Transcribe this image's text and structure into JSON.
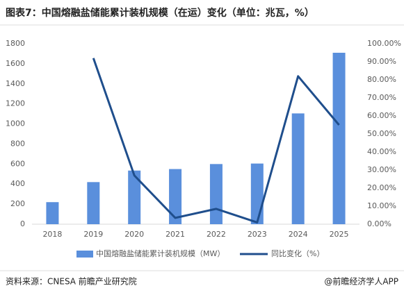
{
  "chart_data": {
    "type": "bar_line",
    "title": "图表7：中国熔融盐储能累计装机规模（在运）变化（单位：兆瓦，%）",
    "source": "资料来源：CNESA  前瞻产业研究院",
    "credit": "@前瞻经济学人APP",
    "categories": [
      "2018",
      "2019",
      "2020",
      "2021",
      "2022",
      "2023",
      "2024",
      "2025"
    ],
    "series": [
      {
        "name": "中国熔融盐储能累计装机规模（MW）",
        "type": "bar",
        "color": "#5a8fdc",
        "values": [
          220,
          420,
          535,
          550,
          600,
          605,
          1105,
          1710
        ]
      },
      {
        "name": "同比变化（%）",
        "type": "line",
        "axis": "y2",
        "color": "#1f4e8c",
        "values": [
          null,
          92,
          27,
          3.5,
          8.5,
          1,
          82,
          55
        ]
      }
    ],
    "ylim": [
      0,
      1800
    ],
    "yticks": [
      0,
      200,
      400,
      600,
      800,
      1000,
      1200,
      1400,
      1600,
      1800
    ],
    "y2lim": [
      0,
      100
    ],
    "y2ticks": [
      {
        "value": 0,
        "label": "0.00%"
      },
      {
        "value": 10,
        "label": "10.00%"
      },
      {
        "value": 20,
        "label": "20.00%"
      },
      {
        "value": 30,
        "label": "30.00%"
      },
      {
        "value": 40,
        "label": "40.00%"
      },
      {
        "value": 50,
        "label": "50.00%"
      },
      {
        "value": 60,
        "label": "60.00%"
      },
      {
        "value": 70,
        "label": "70.00%"
      },
      {
        "value": 80,
        "label": "80.00%"
      },
      {
        "value": 90,
        "label": "90.00%"
      },
      {
        "value": 100,
        "label": "100.00%"
      }
    ],
    "grid": false,
    "legend": "bottom"
  }
}
